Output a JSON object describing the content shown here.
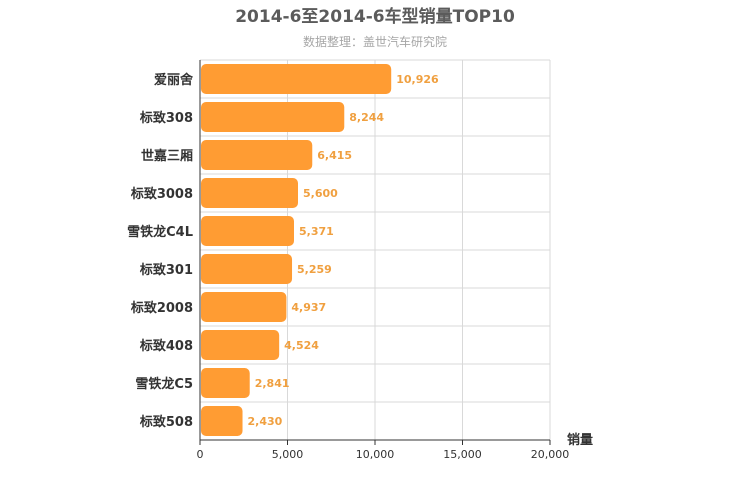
{
  "chart_data": {
    "type": "bar",
    "orientation": "horizontal",
    "title": "2014-6至2014-6车型销量TOP10",
    "subtitle": "数据整理：盖世汽车研究院",
    "categories": [
      "爱丽舍",
      "标致308",
      "世嘉三厢",
      "标致3008",
      "雪铁龙C4L",
      "标致301",
      "标致2008",
      "标致408",
      "雪铁龙C5",
      "标致508"
    ],
    "values": [
      10926,
      8244,
      6415,
      5600,
      5371,
      5259,
      4937,
      4524,
      2841,
      2430
    ],
    "value_labels": [
      "10,926",
      "8,244",
      "6,415",
      "5,600",
      "5,371",
      "5,259",
      "4,937",
      "4,524",
      "2,841",
      "2,430"
    ],
    "xlabel": "销量",
    "ylabel": "",
    "xlim": [
      0,
      20000
    ],
    "xticks": [
      0,
      5000,
      10000,
      15000,
      20000
    ],
    "xtick_labels": [
      "0",
      "5,000",
      "10,000",
      "15,000",
      "20,000"
    ],
    "grid": true,
    "bar_color": "#ff9c33",
    "value_label_color": "#f0a040"
  }
}
